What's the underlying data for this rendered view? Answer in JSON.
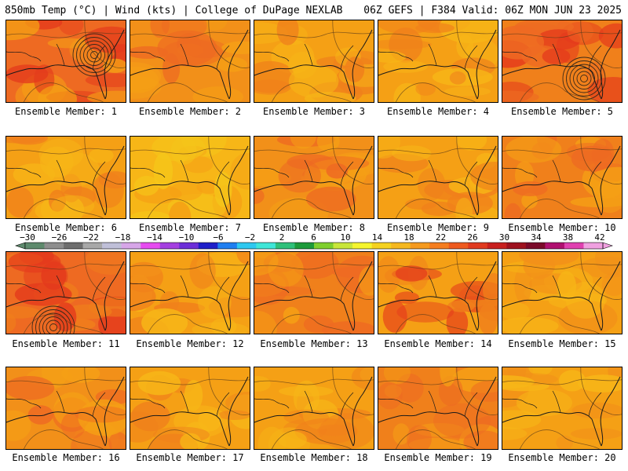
{
  "header": {
    "left": "850mb Temp (°C) | Wind (kts) | College of DuPage NEXLAB",
    "right": "06Z GEFS | F384 Valid: 06Z MON JUN 23 2025"
  },
  "legend": {
    "labels": [
      "−30",
      "−26",
      "−22",
      "−18",
      "−14",
      "−10",
      "−6",
      "−2",
      "2",
      "6",
      "10",
      "14",
      "18",
      "22",
      "26",
      "30",
      "34",
      "38",
      "42"
    ],
    "colors": [
      "#5e8a6d",
      "#8e8e8e",
      "#6e6e6e",
      "#a8a8a8",
      "#bfbfd8",
      "#d7a6e8",
      "#e64cf0",
      "#a43fe0",
      "#6c2ed8",
      "#1f1fc9",
      "#1f7ef0",
      "#2ec8f0",
      "#3fe6d8",
      "#2fc07a",
      "#1d9a3a",
      "#7fcf2e",
      "#c8e63a",
      "#f5f52e",
      "#f5d21f",
      "#f5b81f",
      "#f59a1f",
      "#f57d1f",
      "#ee5a1f",
      "#e03a1f",
      "#c8201f",
      "#9e121f",
      "#7a0a2a",
      "#b01070",
      "#e040b0",
      "#f0a0e0"
    ]
  },
  "members": [
    {
      "label": "Ensemble Member: 1",
      "palette": [
        "#ee6a22",
        "#f5a015",
        "#e43a1c"
      ],
      "cyclone": true
    },
    {
      "label": "Ensemble Member: 2",
      "palette": [
        "#f29019",
        "#f5a015",
        "#ee6a22"
      ],
      "cyclone": false
    },
    {
      "label": "Ensemble Member: 3",
      "palette": [
        "#f5a015",
        "#f0801b",
        "#f7b617"
      ],
      "cyclone": false
    },
    {
      "label": "Ensemble Member: 4",
      "palette": [
        "#f5a015",
        "#f7b617",
        "#f0801b"
      ],
      "cyclone": false
    },
    {
      "label": "Ensemble Member: 5",
      "palette": [
        "#f0801b",
        "#ee6a22",
        "#e43a1c"
      ],
      "cyclone": true
    },
    {
      "label": "Ensemble Member: 6",
      "palette": [
        "#f5a015",
        "#f7b617",
        "#f0801b"
      ],
      "cyclone": false
    },
    {
      "label": "Ensemble Member: 7",
      "palette": [
        "#f7b617",
        "#f5a015",
        "#f5c71a"
      ],
      "cyclone": false
    },
    {
      "label": "Ensemble Member: 8",
      "palette": [
        "#f29019",
        "#f5a015",
        "#ee6a22"
      ],
      "cyclone": false
    },
    {
      "label": "Ensemble Member: 9",
      "palette": [
        "#f5a015",
        "#f7b617",
        "#f0801b"
      ],
      "cyclone": false
    },
    {
      "label": "Ensemble Member: 10",
      "palette": [
        "#f0801b",
        "#f5a015",
        "#ee6a22"
      ],
      "cyclone": false
    },
    {
      "label": "Ensemble Member: 11",
      "palette": [
        "#ee6a22",
        "#f0801b",
        "#e43a1c"
      ],
      "cyclone": true
    },
    {
      "label": "Ensemble Member: 12",
      "palette": [
        "#f5a015",
        "#f0801b",
        "#f7b617"
      ],
      "cyclone": false
    },
    {
      "label": "Ensemble Member: 13",
      "palette": [
        "#f0801b",
        "#ee6a22",
        "#f5a015"
      ],
      "cyclone": false
    },
    {
      "label": "Ensemble Member: 14",
      "palette": [
        "#f5a015",
        "#f0801b",
        "#e43a1c"
      ],
      "cyclone": false
    },
    {
      "label": "Ensemble Member: 15",
      "palette": [
        "#f5a015",
        "#f29019",
        "#f7b617"
      ],
      "cyclone": false
    },
    {
      "label": "Ensemble Member: 16",
      "palette": [
        "#f29019",
        "#f5a015",
        "#ee6a22"
      ],
      "cyclone": false
    },
    {
      "label": "Ensemble Member: 17",
      "palette": [
        "#f5a015",
        "#f7b617",
        "#f0801b"
      ],
      "cyclone": false
    },
    {
      "label": "Ensemble Member: 18",
      "palette": [
        "#f5a015",
        "#f0801b",
        "#f7b617"
      ],
      "cyclone": false
    },
    {
      "label": "Ensemble Member: 19",
      "palette": [
        "#f0801b",
        "#ee6a22",
        "#f5a015"
      ],
      "cyclone": false
    },
    {
      "label": "Ensemble Member: 20",
      "palette": [
        "#f5a015",
        "#f29019",
        "#f7b617"
      ],
      "cyclone": false
    }
  ]
}
